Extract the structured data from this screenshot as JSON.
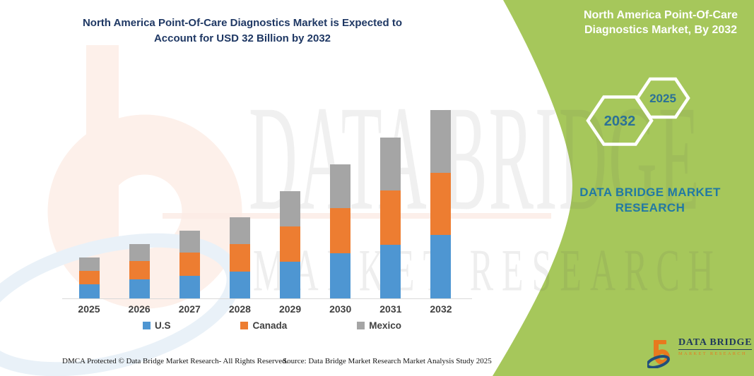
{
  "header": {
    "title_line1": "North America Point-Of-Care Diagnostics Market is Expected to",
    "title_line2": "Account for USD 32 Billion by 2032"
  },
  "green_panel": {
    "title_line1": "North America Point-Of-Care",
    "title_line2": "Diagnostics Market, By 2032",
    "hexagon_back_label": "2032",
    "hexagon_front_label": "2025",
    "brand_line1": "DATA BRIDGE MARKET",
    "brand_line2": "RESEARCH"
  },
  "watermark": {
    "big_text": "DATA BRIDGE",
    "sub_text": "MARKET RESEARCH"
  },
  "chart_data": {
    "type": "bar",
    "stacked": true,
    "title": "North America Point-Of-Care Diagnostics Market, By 2032",
    "unit": "USD Billion",
    "categories": [
      "2025",
      "2026",
      "2027",
      "2028",
      "2029",
      "2030",
      "2031",
      "2032"
    ],
    "series": [
      {
        "name": "U.S",
        "color": "#4E96D2",
        "values": [
          2.4,
          3.2,
          3.9,
          4.6,
          6.2,
          7.7,
          9.1,
          10.8
        ]
      },
      {
        "name": "Canada",
        "color": "#ED7D31",
        "values": [
          2.3,
          3.1,
          3.9,
          4.6,
          6.0,
          7.6,
          9.2,
          10.6
        ]
      },
      {
        "name": "Mexico",
        "color": "#A5A5A5",
        "values": [
          2.2,
          2.9,
          3.7,
          4.6,
          6.0,
          7.5,
          9.0,
          10.6
        ]
      }
    ],
    "totals": [
      6.9,
      9.2,
      11.5,
      13.8,
      18.2,
      22.8,
      27.3,
      32.0
    ],
    "xlabel": "",
    "ylabel": "",
    "ylim": [
      0,
      32
    ],
    "grid": false,
    "y_axis_visible": false,
    "legend_position": "bottom"
  },
  "footer": {
    "dmca": "DMCA Protected © Data Bridge Market Research-  All Rights Reserved.",
    "source": "Source: Data Bridge Market Research  Market Analysis Study 2025"
  },
  "logo": {
    "name": "DATA BRIDGE",
    "subtitle": "MARKET RESEARCH"
  },
  "colors": {
    "panel_green": "#A6C75B",
    "title_navy": "#1F3864",
    "brand_teal": "#2279A3",
    "hexagon_text": "#2B7196",
    "bar_blue": "#4E96D2",
    "bar_orange": "#ED7D31",
    "bar_gray": "#A5A5A5"
  }
}
